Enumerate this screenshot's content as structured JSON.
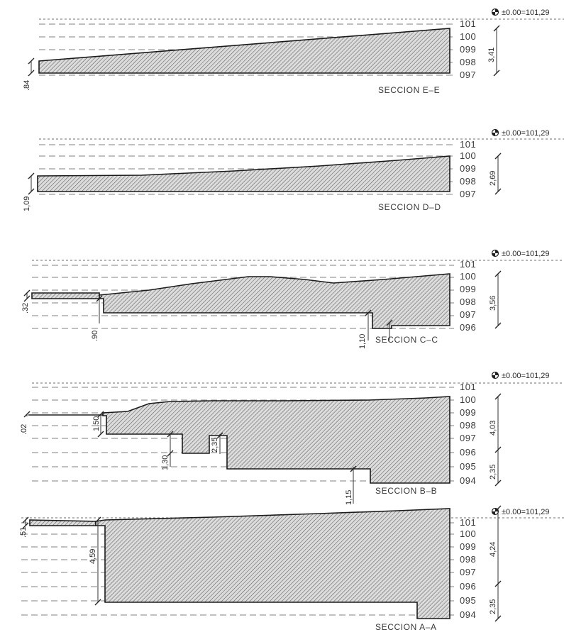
{
  "reference_level": "±0.00=101,29",
  "sections": [
    {
      "id": "E",
      "title": "SECCION  E–E",
      "levels": [
        "101",
        "100",
        "099",
        "098",
        "097"
      ],
      "dimensions": [
        ".84",
        "3,41"
      ]
    },
    {
      "id": "D",
      "title": "SECCION  D–D",
      "levels": [
        "101",
        "100",
        "099",
        "098",
        "097"
      ],
      "dimensions": [
        "1,09",
        "2,69"
      ]
    },
    {
      "id": "C",
      "title": "SECCION  C–C",
      "levels": [
        "101",
        "100",
        "099",
        "098",
        "097",
        "096"
      ],
      "dimensions": [
        ".32",
        ".90",
        "1,10",
        "3,56"
      ]
    },
    {
      "id": "B",
      "title": "SECCION  B–B",
      "levels": [
        "101",
        "100",
        "099",
        "098",
        "097",
        "096",
        "095",
        "094"
      ],
      "dimensions": [
        ".02",
        "1,50",
        "1,30",
        "2,35",
        "1,15",
        "4,03",
        "2,35"
      ]
    },
    {
      "id": "A",
      "title": "SECCION  A–A",
      "levels": [
        "101",
        "100",
        "099",
        "098",
        "097",
        "096",
        "095",
        "094"
      ],
      "dimensions": [
        ".51",
        "4,59",
        "4,24",
        "2,35"
      ]
    }
  ],
  "colors": {
    "ink": "#1a1a1a",
    "hatch": "#555555",
    "level_line": "#9a9a9a"
  },
  "icons": {
    "reference_marker": "level-datum-icon"
  }
}
